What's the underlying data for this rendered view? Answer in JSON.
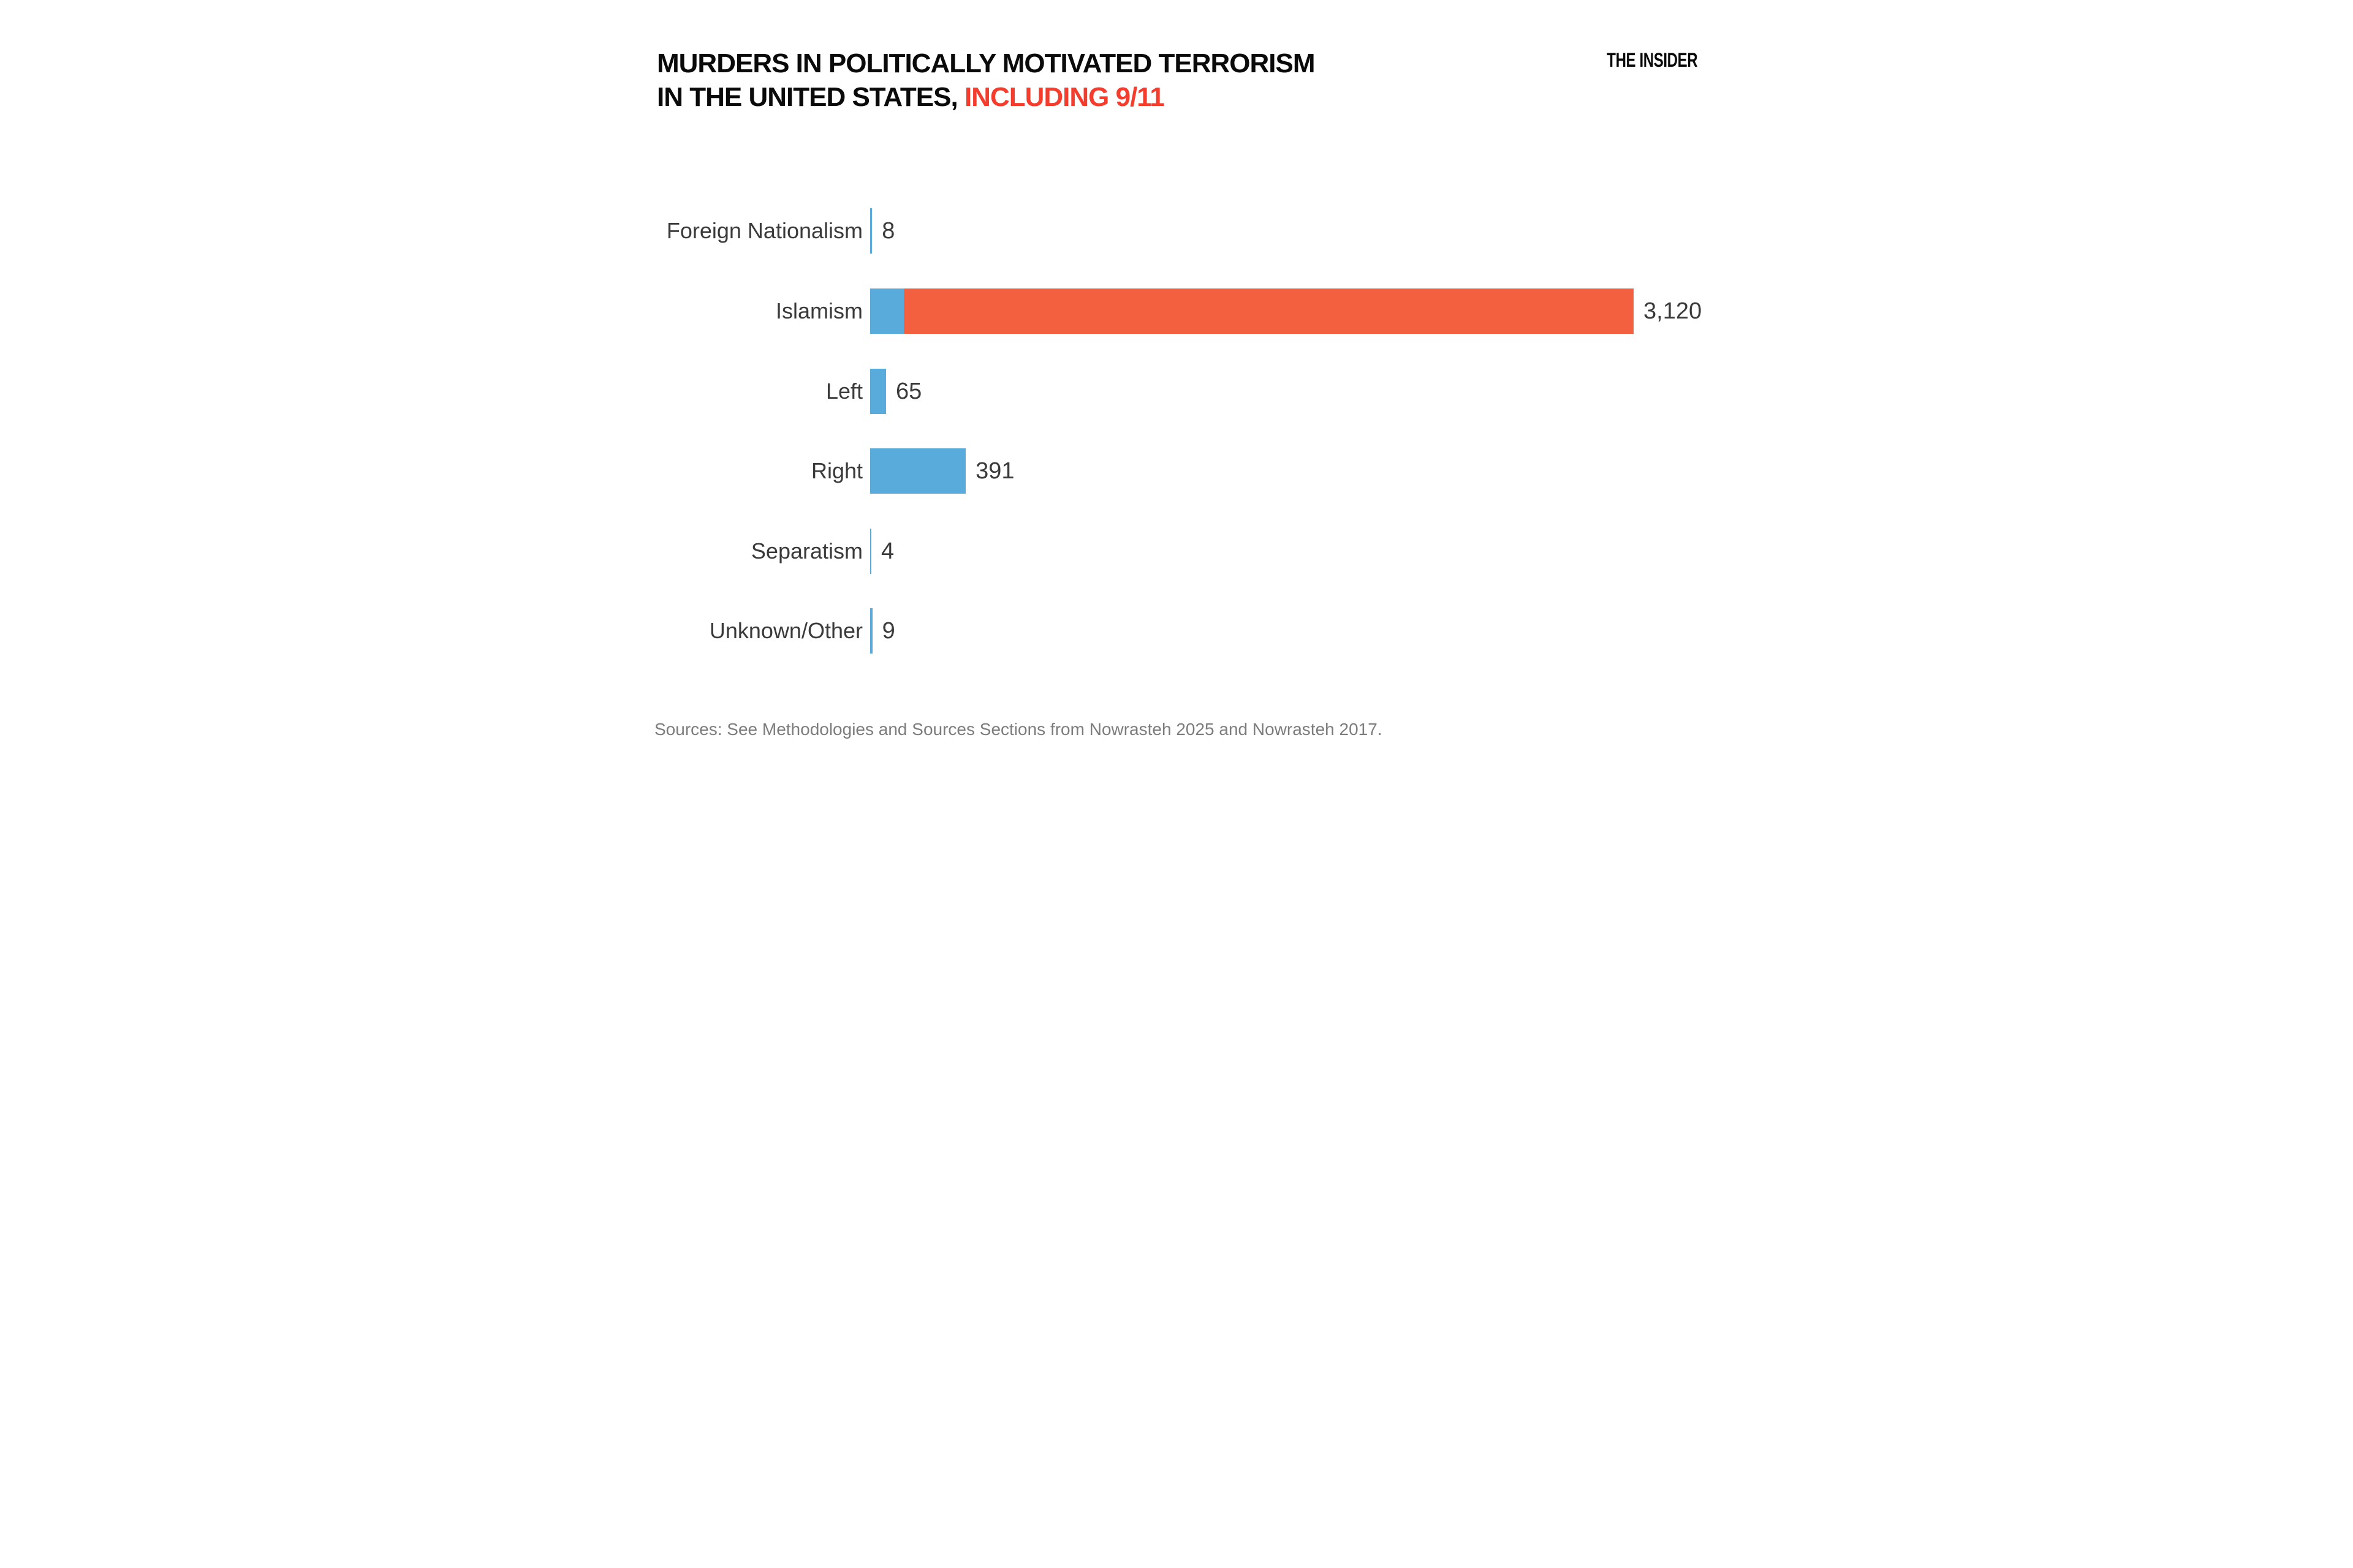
{
  "header": {
    "title_line1": "MURDERS IN POLITICALLY MOTIVATED TERRORISM",
    "title_line2_prefix": "IN THE UNITED STATES, ",
    "title_line2_highlight": "INCLUDING 9/11",
    "brand": "THE INSIDER"
  },
  "colors": {
    "blue": "#58abdb",
    "red": "#f3603f",
    "title_red": "#f53d2e",
    "text_dark": "#3a3a3a",
    "source_gray": "#7d7d7d",
    "background": "#ffffff"
  },
  "chart_data": {
    "type": "bar",
    "orientation": "horizontal",
    "title": "MURDERS IN POLITICALLY MOTIVATED TERRORISM IN THE UNITED STATES, INCLUDING 9/11",
    "xlabel": "",
    "ylabel": "",
    "x_range": [
      0,
      3120
    ],
    "grid": "off",
    "legend": "none",
    "categories": [
      "Foreign Nationalism",
      "Islamism",
      "Left",
      "Right",
      "Separatism",
      "Unknown/Other"
    ],
    "values": [
      8,
      3120,
      65,
      391,
      4,
      9
    ],
    "value_labels": [
      "8",
      "3,120",
      "65",
      "391",
      "4",
      "9"
    ],
    "rows": [
      {
        "label": "Foreign Nationalism",
        "display_value": "8",
        "segments": [
          {
            "color": "blue",
            "value": 8
          }
        ]
      },
      {
        "label": "Islamism",
        "display_value": "3,120",
        "segments": [
          {
            "color": "blue",
            "value": 137
          },
          {
            "color": "red",
            "value": 2983
          }
        ]
      },
      {
        "label": "Left",
        "display_value": "65",
        "segments": [
          {
            "color": "blue",
            "value": 65
          }
        ]
      },
      {
        "label": "Right",
        "display_value": "391",
        "segments": [
          {
            "color": "blue",
            "value": 391
          }
        ]
      },
      {
        "label": "Separatism",
        "display_value": "4",
        "segments": [
          {
            "color": "blue",
            "value": 4
          }
        ]
      },
      {
        "label": "Unknown/Other",
        "display_value": "9",
        "segments": [
          {
            "color": "blue",
            "value": 9
          }
        ]
      }
    ]
  },
  "footer": {
    "source": "Sources: See Methodologies and Sources Sections from Nowrasteh 2025 and Nowrasteh 2017."
  }
}
